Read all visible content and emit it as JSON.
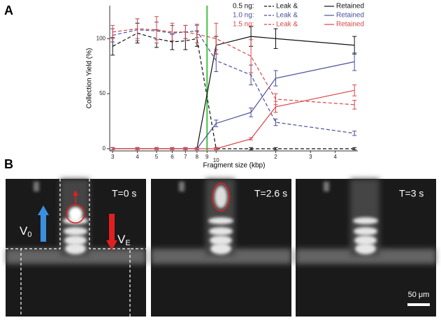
{
  "chart_data": {
    "type": "line",
    "panel_label": "A",
    "y_label": "Collection Yield (%)",
    "x_label": "Fragment size (kbp)",
    "x": [
      3,
      4,
      5,
      6,
      7,
      8,
      10,
      15,
      20,
      50
    ],
    "xlog": true,
    "xlim": [
      2.9,
      52
    ],
    "ylim": [
      -2,
      130
    ],
    "xticks": [
      3,
      4,
      5,
      6,
      7,
      8,
      9,
      10,
      {
        "value": 20,
        "label": "2"
      },
      {
        "value": 30,
        "label": "3"
      },
      {
        "value": 40,
        "label": "4"
      }
    ],
    "yticks": [
      0,
      50,
      100
    ],
    "vline": {
      "x": 9,
      "color": "#44c444"
    },
    "series": [
      {
        "group": "0.5 ng:",
        "name": "Leak &",
        "style": "dashed",
        "color": "#111111",
        "values": [
          93,
          105,
          100,
          97,
          98,
          100,
          0,
          0,
          0,
          0
        ],
        "errors": [
          8,
          9,
          8,
          7,
          8,
          7,
          1,
          1,
          1,
          1
        ]
      },
      {
        "group": "0.5 ng:",
        "name": "Retained",
        "style": "solid",
        "color": "#111111",
        "values": [
          0,
          0,
          0,
          0,
          0,
          0,
          94,
          102,
          100,
          94
        ],
        "errors": [
          1,
          1,
          1,
          1,
          1,
          1,
          8,
          9,
          9,
          8
        ]
      },
      {
        "group": "1.0 ng:",
        "name": "Leak &",
        "style": "dashed",
        "color": "#4a4f9a",
        "values": [
          103,
          108,
          107,
          105,
          106,
          107,
          80,
          67,
          24,
          14
        ],
        "errors": [
          6,
          10,
          8,
          7,
          6,
          6,
          10,
          9,
          3,
          2
        ]
      },
      {
        "group": "1.0 ng:",
        "name": "Retained",
        "style": "solid",
        "color": "#4a4f9a",
        "values": [
          0,
          0,
          0,
          0,
          0,
          0,
          23,
          33,
          64,
          79
        ],
        "errors": [
          1,
          1,
          1,
          1,
          1,
          1,
          3,
          4,
          7,
          8
        ]
      },
      {
        "group": "1.5 ng:",
        "name": "Leak &",
        "style": "dashed",
        "color": "#d9464a",
        "values": [
          106,
          109,
          108,
          106,
          106,
          104,
          100,
          84,
          45,
          40
        ],
        "errors": [
          6,
          9,
          12,
          8,
          6,
          8,
          14,
          15,
          5,
          4
        ]
      },
      {
        "group": "1.5 ng:",
        "name": "Retained",
        "style": "solid",
        "color": "#d9464a",
        "values": [
          0,
          0,
          0,
          0,
          0,
          0,
          0,
          9,
          38,
          53
        ],
        "errors": [
          1,
          1,
          1,
          1,
          1,
          1,
          1,
          1,
          5,
          5
        ]
      }
    ]
  },
  "panel_b": {
    "label": "B",
    "frames": [
      {
        "time": "T=0 s"
      },
      {
        "time": "T=2.6 s"
      },
      {
        "time": "T=3 s"
      }
    ],
    "v0": {
      "main": "V",
      "sub": "0"
    },
    "ve": {
      "main": "V",
      "sub": "E"
    },
    "scale_bar": "50 μm"
  }
}
